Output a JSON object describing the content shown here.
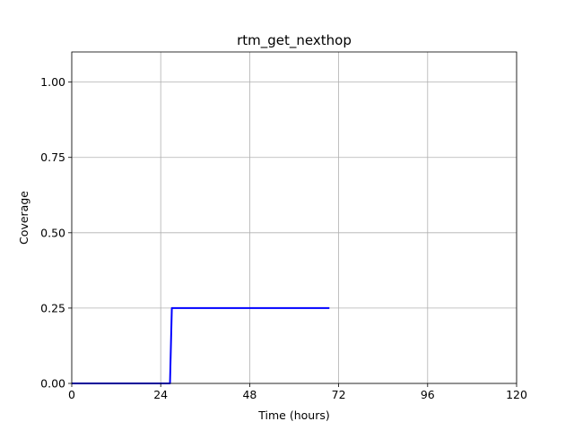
{
  "chart_data": {
    "type": "line",
    "title": "rtm_get_nexthop",
    "xlabel": "Time (hours)",
    "ylabel": "Coverage",
    "xlim": [
      0,
      120
    ],
    "ylim": [
      0,
      1.1
    ],
    "xticks": [
      0,
      24,
      48,
      72,
      96,
      120
    ],
    "xtick_labels": [
      "0",
      "24",
      "48",
      "72",
      "96",
      "120"
    ],
    "yticks": [
      0,
      0.25,
      0.5,
      0.75,
      1.0
    ],
    "ytick_labels": [
      "0.00",
      "0.25",
      "0.50",
      "0.75",
      "1.00"
    ],
    "grid": true,
    "series": [
      {
        "color": "#0000ff",
        "x": [
          0,
          26.5,
          27,
          69.5
        ],
        "y": [
          0,
          0,
          0.25,
          0.25
        ]
      }
    ]
  }
}
